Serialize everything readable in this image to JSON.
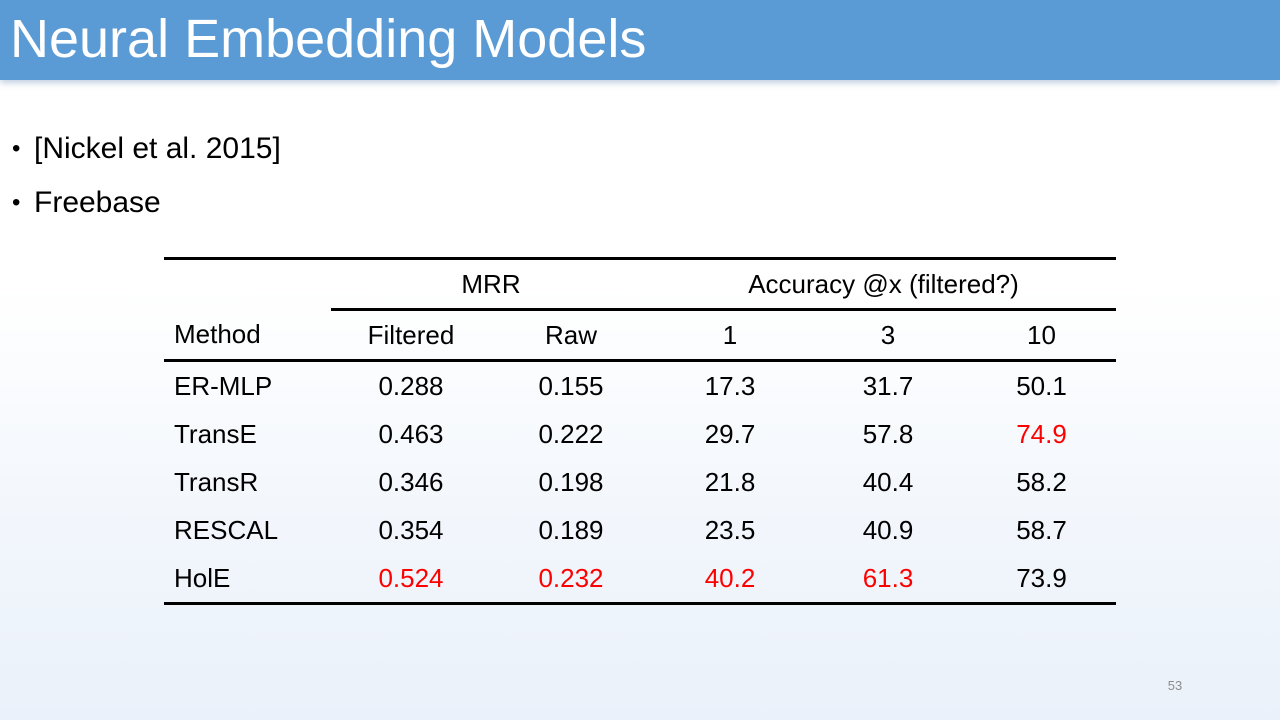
{
  "slide": {
    "title": "Neural Embedding Models",
    "bullets": [
      "[Nickel et al. 2015]",
      "Freebase"
    ],
    "page_number": "53"
  },
  "table": {
    "group_headers": {
      "mrr": "MRR",
      "accuracy": "Accuracy @x (filtered?)"
    },
    "columns": [
      "Method",
      "Filtered",
      "Raw",
      "1",
      "3",
      "10"
    ],
    "rows": [
      {
        "method": "ER-MLP",
        "filtered": "0.288",
        "raw": "0.155",
        "acc1": "17.3",
        "acc3": "31.7",
        "acc10": "50.1"
      },
      {
        "method": "TransE",
        "filtered": "0.463",
        "raw": "0.222",
        "acc1": "29.7",
        "acc3": "57.8",
        "acc10": "74.9"
      },
      {
        "method": "TransR",
        "filtered": "0.346",
        "raw": "0.198",
        "acc1": "21.8",
        "acc3": "40.4",
        "acc10": "58.2"
      },
      {
        "method": "RESCAL",
        "filtered": "0.354",
        "raw": "0.189",
        "acc1": "23.5",
        "acc3": "40.9",
        "acc10": "58.7"
      },
      {
        "method": "HolE",
        "filtered": "0.524",
        "raw": "0.232",
        "acc1": "40.2",
        "acc3": "61.3",
        "acc10": "73.9"
      }
    ],
    "highlight_color": "#ff0000"
  },
  "colors": {
    "title_bar": "#5b9bd5",
    "title_text": "#ffffff"
  }
}
